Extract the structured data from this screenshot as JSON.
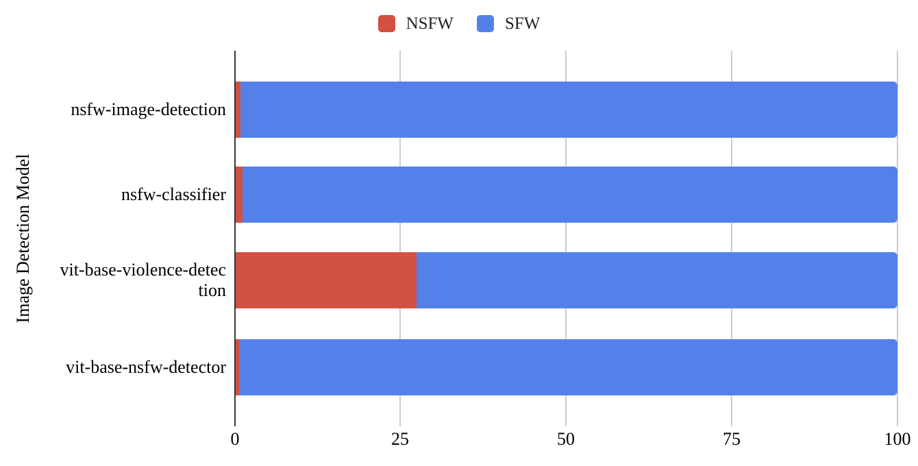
{
  "chart_data": {
    "type": "bar",
    "orientation": "horizontal",
    "stacked": true,
    "title": "",
    "xlabel": "",
    "ylabel": "Image Detection Model",
    "categories": [
      "nsfw-image-detection",
      "nsfw-classifier",
      "vit-base-violence-detection",
      "vit-base-nsfw-detector"
    ],
    "category_labels": [
      "nsfw-image-detection",
      "nsfw-classifier",
      "vit-base-violence-detec\ntion",
      "vit-base-nsfw-detector"
    ],
    "series": [
      {
        "name": "NSFW",
        "color": "#D25141",
        "values": [
          0.7,
          1.0,
          27.3,
          0.5
        ]
      },
      {
        "name": "SFW",
        "color": "#5481E9",
        "values": [
          99.3,
          99.0,
          72.7,
          99.5
        ]
      }
    ],
    "xlim": [
      0,
      100
    ],
    "x_ticks": [
      "0",
      "25",
      "50",
      "75",
      "100"
    ],
    "grid": "vertical-gridlines-on",
    "legend_position": "top-center"
  },
  "colors": {
    "nsfw": "#D25141",
    "sfw": "#5481E9",
    "axis_line": "#333639",
    "gridline": "#CCCCCC",
    "text": "#000000",
    "background": "#FFFFFF"
  }
}
